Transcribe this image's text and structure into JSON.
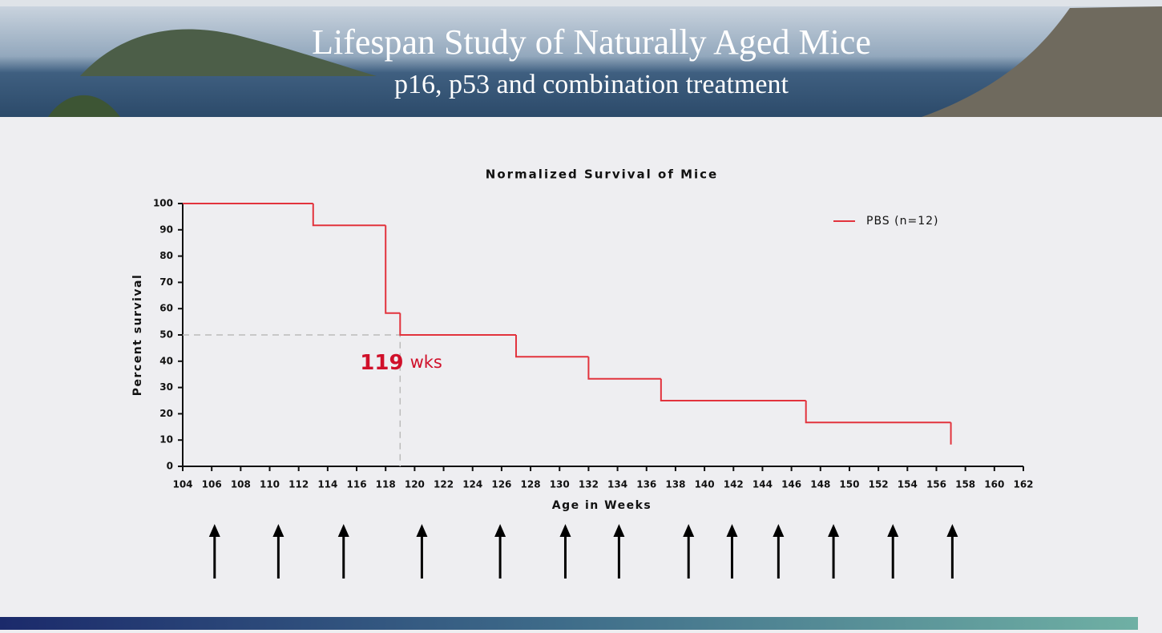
{
  "header": {
    "title": "Lifespan Study of Naturally Aged Mice",
    "subtitle": "p16, p53 and combination treatment"
  },
  "chart_data": {
    "type": "line",
    "step": "post",
    "title": "Normalized Survival of Mice",
    "x_label": "Age in Weeks",
    "y_label": "Percent survival",
    "x": [
      104,
      113,
      118,
      119,
      127,
      132,
      137,
      147,
      157
    ],
    "series": [
      {
        "name": "PBS (n=12)",
        "color": "#e2333d",
        "values": [
          100,
          91.7,
          58.3,
          50,
          41.7,
          33.3,
          25,
          16.7,
          8.3
        ]
      }
    ],
    "xlim": [
      104,
      162
    ],
    "xticks": [
      104,
      106,
      108,
      110,
      112,
      114,
      116,
      118,
      120,
      122,
      124,
      126,
      128,
      130,
      132,
      134,
      136,
      138,
      140,
      142,
      144,
      146,
      148,
      150,
      152,
      154,
      156,
      158,
      160,
      162
    ],
    "ylim": [
      0,
      100
    ],
    "yticks": [
      0,
      10,
      20,
      30,
      40,
      50,
      60,
      70,
      80,
      90,
      100
    ],
    "median": {
      "x": 119,
      "y": 50
    },
    "median_unit": "wks",
    "treatment_weeks": [
      106.2,
      110.6,
      115.1,
      120.5,
      125.9,
      130.4,
      134.1,
      138.9,
      141.9,
      145.1,
      148.9,
      153,
      157.1
    ],
    "legend": "upper right"
  }
}
